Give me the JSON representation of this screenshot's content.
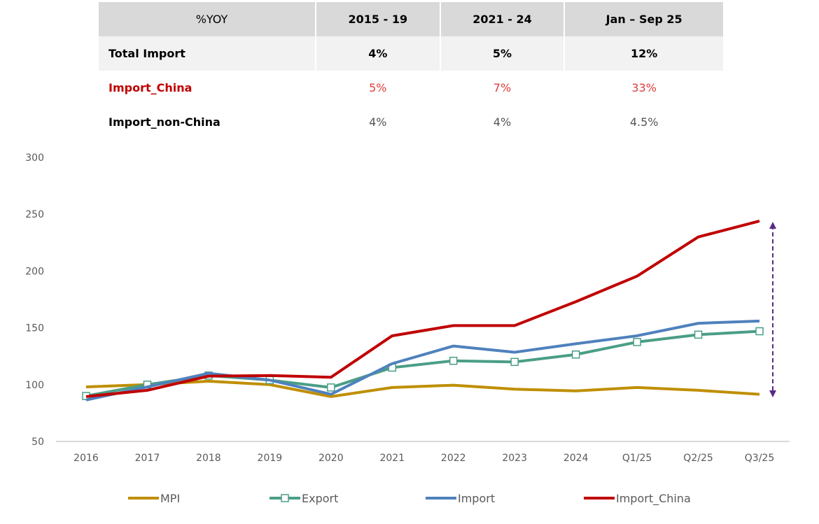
{
  "table": {
    "headers": [
      "%YOY",
      "2015 - 19",
      "2021 - 24",
      "Jan – Sep 25"
    ],
    "rows": [
      {
        "label": "Total Import",
        "values": [
          "4%",
          "5%",
          "12%"
        ]
      },
      {
        "label": "Import_China",
        "values": [
          "5%",
          "7%",
          "33%"
        ]
      },
      {
        "label": "Import_non-China",
        "values": [
          "4%",
          "4%",
          "4.5%"
        ]
      }
    ]
  },
  "chart_data": {
    "type": "line",
    "categories": [
      "2016",
      "2017",
      "2018",
      "2019",
      "2020",
      "2021",
      "2022",
      "2023",
      "2024",
      "Q1/25",
      "Q2/25",
      "Q3/25"
    ],
    "ylim": [
      50,
      300
    ],
    "yticks": [
      50,
      100,
      150,
      200,
      250,
      300
    ],
    "ytick_labels": [
      "50",
      "100",
      "150",
      "200",
      "250",
      "300"
    ],
    "legend_position": "bottom",
    "series": [
      {
        "name": "MPI",
        "color": "#bf8f00",
        "values": [
          98,
          100,
          103,
          100,
          89.5,
          97.5,
          99.5,
          96,
          94.5,
          97.5,
          95,
          91.5
        ]
      },
      {
        "name": "Export",
        "color": "#4a9e86",
        "marker": "square",
        "values": [
          90,
          100,
          108,
          104,
          97.5,
          115,
          121,
          120,
          126.5,
          137.5,
          144,
          147
        ]
      },
      {
        "name": "Import",
        "color": "#4f81bd",
        "values": [
          86.5,
          98,
          110,
          104,
          91.5,
          118.5,
          134,
          128.5,
          136,
          143,
          154,
          156
        ]
      },
      {
        "name": "Import_China",
        "color": "#c00000",
        "values": [
          89.5,
          95,
          107.5,
          108,
          106.5,
          143,
          152,
          152,
          173,
          195.5,
          230,
          244
        ]
      }
    ]
  }
}
